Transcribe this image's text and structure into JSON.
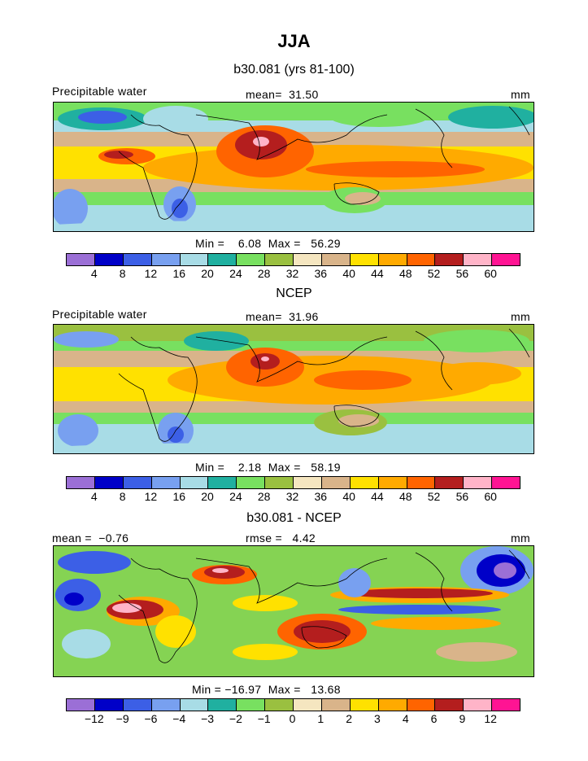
{
  "figure": {
    "title": "JJA",
    "panels": [
      {
        "subtitle": "b30.081 (yrs 81-100)",
        "left_label": "Precipitable water",
        "center_label": "mean=  31.50",
        "right_label": "mm",
        "minmax_label": "Min =    6.08  Max =   56.29",
        "colorbar": {
          "colors": [
            "#9b6fd6",
            "#0000c8",
            "#3c5fe6",
            "#78a0f0",
            "#a8dce6",
            "#20b0a0",
            "#78e060",
            "#9ac040",
            "#f5e6c0",
            "#d9b48a",
            "#ffe100",
            "#ffaa00",
            "#ff6400",
            "#b41e1e",
            "#ffb4c8",
            "#ff1493"
          ],
          "ticks": [
            "4",
            "8",
            "12",
            "16",
            "20",
            "24",
            "28",
            "32",
            "36",
            "40",
            "44",
            "48",
            "52",
            "56",
            "60"
          ]
        }
      },
      {
        "subtitle": "NCEP",
        "left_label": "Precipitable water",
        "center_label": "mean=  31.96",
        "right_label": "mm",
        "minmax_label": "Min =    2.18  Max =   58.19",
        "colorbar": {
          "colors": [
            "#9b6fd6",
            "#0000c8",
            "#3c5fe6",
            "#78a0f0",
            "#a8dce6",
            "#20b0a0",
            "#78e060",
            "#9ac040",
            "#f5e6c0",
            "#d9b48a",
            "#ffe100",
            "#ffaa00",
            "#ff6400",
            "#b41e1e",
            "#ffb4c8",
            "#ff1493"
          ],
          "ticks": [
            "4",
            "8",
            "12",
            "16",
            "20",
            "24",
            "28",
            "32",
            "36",
            "40",
            "44",
            "48",
            "52",
            "56",
            "60"
          ]
        }
      },
      {
        "subtitle": "b30.081 - NCEP",
        "left_label": "mean =  −0.76",
        "center_label": "rmse =   4.42",
        "right_label": "mm",
        "minmax_label": "Min = −16.97  Max =   13.68",
        "colorbar": {
          "colors": [
            "#9b6fd6",
            "#0000c8",
            "#3c5fe6",
            "#78a0f0",
            "#a8dce6",
            "#20b0a0",
            "#78e060",
            "#9ac040",
            "#f5e6c0",
            "#d9b48a",
            "#ffe100",
            "#ffaa00",
            "#ff6400",
            "#b41e1e",
            "#ffb4c8",
            "#ff1493"
          ],
          "ticks": [
            "−12",
            "−9",
            "−6",
            "−4",
            "−3",
            "−2",
            "−1",
            "0",
            "1",
            "2",
            "3",
            "4",
            "6",
            "9",
            "12"
          ]
        }
      }
    ]
  }
}
